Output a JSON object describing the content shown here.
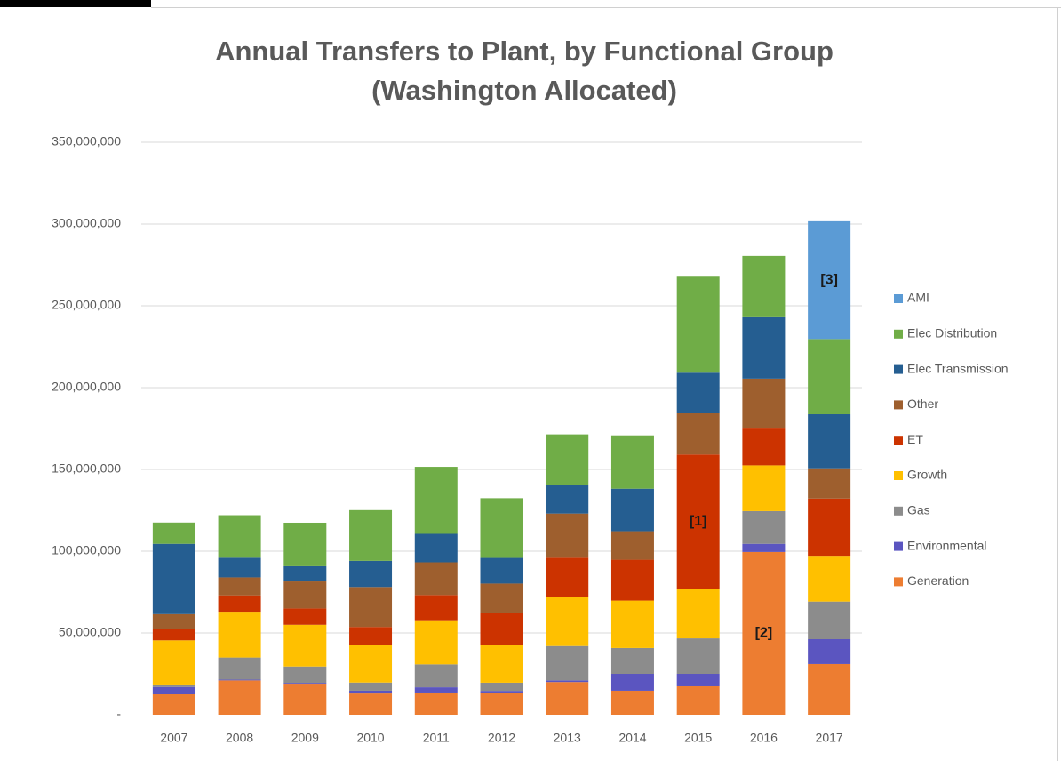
{
  "chart_data": {
    "type": "stacked_bar",
    "title": [
      "Annual Transfers to Plant, by Functional Group",
      "(Washington Allocated)"
    ],
    "categories": [
      "2007",
      "2008",
      "2009",
      "2010",
      "2011",
      "2012",
      "2013",
      "2014",
      "2015",
      "2016",
      "2017"
    ],
    "series": [
      {
        "name": "Generation",
        "color": "#ed7d31",
        "values": [
          12500000,
          21000000,
          19000000,
          13000000,
          13600000,
          13600000,
          20000000,
          14700000,
          17400000,
          99500000,
          31000000
        ]
      },
      {
        "name": "Environmental",
        "color": "#5b55c0",
        "values": [
          4500000,
          500000,
          500000,
          1700000,
          3200000,
          1000000,
          1000000,
          10300000,
          7600000,
          5000000,
          15200000
        ]
      },
      {
        "name": "Gas",
        "color": "#8c8c8c",
        "values": [
          1500000,
          13500000,
          10000000,
          5000000,
          14000000,
          5000000,
          21000000,
          15800000,
          21700000,
          20000000,
          23000000
        ]
      },
      {
        "name": "Growth",
        "color": "#ffc000",
        "values": [
          27000000,
          28000000,
          25500000,
          23000000,
          27000000,
          23000000,
          30000000,
          29000000,
          30400000,
          28000000,
          28000000
        ]
      },
      {
        "name": "ET",
        "color": "#cc3300",
        "values": [
          7000000,
          10000000,
          10000000,
          11000000,
          15400000,
          19600000,
          24000000,
          25000000,
          82000000,
          23000000,
          35000000
        ]
      },
      {
        "name": "Other",
        "color": "#9e5f2e",
        "values": [
          9000000,
          11000000,
          16500000,
          24400000,
          20000000,
          18000000,
          27000000,
          17400000,
          25500000,
          30000000,
          18500000
        ]
      },
      {
        "name": "Elec Transmission",
        "color": "#255e91",
        "values": [
          43000000,
          12000000,
          9300000,
          16000000,
          17400000,
          15700000,
          17400000,
          26000000,
          24500000,
          37500000,
          33000000
        ]
      },
      {
        "name": "Elec Distribution",
        "color": "#70ad47",
        "values": [
          13000000,
          26000000,
          26600000,
          31000000,
          41000000,
          36500000,
          31000000,
          32600000,
          58700000,
          37500000,
          46000000
        ]
      },
      {
        "name": "AMI",
        "color": "#5b9bd5",
        "values": [
          0,
          0,
          0,
          0,
          0,
          0,
          0,
          0,
          0,
          0,
          72000000
        ]
      }
    ],
    "ylim": [
      0,
      350000000
    ],
    "yticks": [
      {
        "value": 0,
        "label": "-"
      },
      {
        "value": 50000000,
        "label": "50,000,000"
      },
      {
        "value": 100000000,
        "label": "100,000,000"
      },
      {
        "value": 150000000,
        "label": "150,000,000"
      },
      {
        "value": 200000000,
        "label": "200,000,000"
      },
      {
        "value": 250000000,
        "label": "250,000,000"
      },
      {
        "value": 300000000,
        "label": "300,000,000"
      },
      {
        "value": 350000000,
        "label": "350,000,000"
      }
    ],
    "grid": true,
    "legend": "right",
    "annotations": [
      {
        "text": "[1]",
        "category": "2015",
        "series": "ET"
      },
      {
        "text": "[2]",
        "category": "2016",
        "series": "Generation"
      },
      {
        "text": "[3]",
        "category": "2017",
        "series": "AMI"
      }
    ]
  }
}
